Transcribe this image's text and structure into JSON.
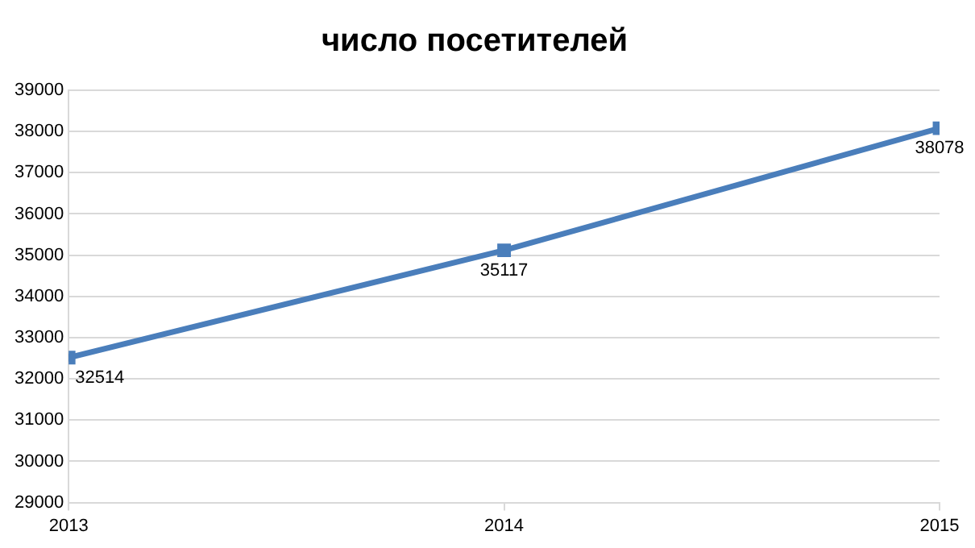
{
  "chart_data": {
    "type": "line",
    "title": "число посетителей",
    "x": [
      2013,
      2014,
      2015
    ],
    "series": [
      {
        "color": "#4a7ebb",
        "values": [
          32514,
          35117,
          38078
        ]
      }
    ],
    "xlim": [
      2013,
      2015
    ],
    "xticks": [
      2013,
      2014,
      2015
    ],
    "ylim": [
      29000,
      39000
    ],
    "yticks": [
      29000,
      30000,
      31000,
      32000,
      33000,
      34000,
      35000,
      36000,
      37000,
      38000,
      39000
    ],
    "grid": "y",
    "legend": false,
    "marker": "square",
    "line_style": "solid",
    "data_labels": true
  }
}
